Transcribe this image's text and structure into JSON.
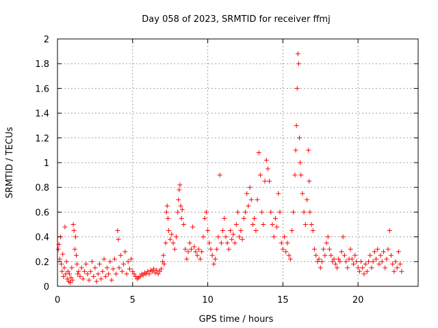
{
  "chart_data": {
    "type": "scatter",
    "title": "Day 058 of 2023, SRMTID for receiver ffmj",
    "xlabel": "GPS time / hours",
    "ylabel": "SRMTID / TECUs",
    "xlim": [
      0,
      24
    ],
    "ylim": [
      0,
      2
    ],
    "xticks": [
      0,
      5,
      10,
      15,
      20
    ],
    "yticks": [
      0,
      0.2,
      0.4,
      0.6,
      0.8,
      1,
      1.2,
      1.4,
      1.6,
      1.8,
      2
    ],
    "grid": true,
    "marker": "+",
    "marker_color": "#ff0000",
    "series": [
      {
        "name": "SRMTID",
        "points": [
          [
            0.05,
            0.3
          ],
          [
            0.1,
            0.34
          ],
          [
            0.15,
            0.22
          ],
          [
            0.2,
            0.4
          ],
          [
            0.25,
            0.18
          ],
          [
            0.3,
            0.12
          ],
          [
            0.35,
            0.26
          ],
          [
            0.4,
            0.08
          ],
          [
            0.45,
            0.15
          ],
          [
            0.5,
            0.48
          ],
          [
            0.55,
            0.1
          ],
          [
            0.6,
            0.2
          ],
          [
            0.65,
            0.06
          ],
          [
            0.7,
            0.12
          ],
          [
            0.75,
            0.04
          ],
          [
            0.8,
            0.1
          ],
          [
            0.85,
            0.03
          ],
          [
            0.9,
            0.07
          ],
          [
            0.95,
            0.15
          ],
          [
            1.0,
            0.05
          ],
          [
            1.05,
            0.5
          ],
          [
            1.1,
            0.45
          ],
          [
            1.15,
            0.3
          ],
          [
            1.2,
            0.4
          ],
          [
            1.25,
            0.25
          ],
          [
            1.3,
            0.18
          ],
          [
            1.35,
            0.1
          ],
          [
            1.4,
            0.12
          ],
          [
            1.5,
            0.08
          ],
          [
            1.6,
            0.15
          ],
          [
            1.7,
            0.06
          ],
          [
            1.8,
            0.12
          ],
          [
            1.9,
            0.18
          ],
          [
            2.0,
            0.1
          ],
          [
            2.1,
            0.05
          ],
          [
            2.2,
            0.12
          ],
          [
            2.3,
            0.2
          ],
          [
            2.4,
            0.08
          ],
          [
            2.5,
            0.15
          ],
          [
            2.6,
            0.04
          ],
          [
            2.7,
            0.1
          ],
          [
            2.8,
            0.18
          ],
          [
            2.9,
            0.06
          ],
          [
            3.0,
            0.12
          ],
          [
            3.1,
            0.22
          ],
          [
            3.2,
            0.08
          ],
          [
            3.3,
            0.15
          ],
          [
            3.4,
            0.1
          ],
          [
            3.5,
            0.2
          ],
          [
            3.6,
            0.05
          ],
          [
            3.7,
            0.14
          ],
          [
            3.8,
            0.22
          ],
          [
            3.9,
            0.1
          ],
          [
            4.0,
            0.45
          ],
          [
            4.05,
            0.38
          ],
          [
            4.1,
            0.15
          ],
          [
            4.2,
            0.25
          ],
          [
            4.3,
            0.12
          ],
          [
            4.4,
            0.18
          ],
          [
            4.5,
            0.28
          ],
          [
            4.6,
            0.1
          ],
          [
            4.7,
            0.2
          ],
          [
            4.8,
            0.14
          ],
          [
            4.9,
            0.22
          ],
          [
            5.0,
            0.12
          ],
          [
            5.1,
            0.1
          ],
          [
            5.2,
            0.08
          ],
          [
            5.3,
            0.06
          ],
          [
            5.4,
            0.07
          ],
          [
            5.5,
            0.08
          ],
          [
            5.6,
            0.1
          ],
          [
            5.7,
            0.09
          ],
          [
            5.8,
            0.11
          ],
          [
            5.9,
            0.1
          ],
          [
            6.0,
            0.12
          ],
          [
            6.1,
            0.1
          ],
          [
            6.2,
            0.13
          ],
          [
            6.3,
            0.12
          ],
          [
            6.4,
            0.14
          ],
          [
            6.5,
            0.11
          ],
          [
            6.6,
            0.13
          ],
          [
            6.7,
            0.1
          ],
          [
            6.8,
            0.12
          ],
          [
            6.9,
            0.14
          ],
          [
            7.0,
            0.2
          ],
          [
            7.05,
            0.25
          ],
          [
            7.1,
            0.18
          ],
          [
            7.2,
            0.35
          ],
          [
            7.25,
            0.6
          ],
          [
            7.3,
            0.65
          ],
          [
            7.35,
            0.55
          ],
          [
            7.4,
            0.45
          ],
          [
            7.5,
            0.38
          ],
          [
            7.6,
            0.42
          ],
          [
            7.7,
            0.35
          ],
          [
            7.8,
            0.3
          ],
          [
            7.9,
            0.4
          ],
          [
            8.0,
            0.6
          ],
          [
            8.05,
            0.7
          ],
          [
            8.1,
            0.78
          ],
          [
            8.15,
            0.82
          ],
          [
            8.2,
            0.65
          ],
          [
            8.25,
            0.55
          ],
          [
            8.3,
            0.62
          ],
          [
            8.4,
            0.5
          ],
          [
            8.5,
            0.3
          ],
          [
            8.6,
            0.22
          ],
          [
            8.7,
            0.28
          ],
          [
            8.8,
            0.35
          ],
          [
            8.9,
            0.3
          ],
          [
            9.0,
            0.48
          ],
          [
            9.1,
            0.32
          ],
          [
            9.2,
            0.28
          ],
          [
            9.3,
            0.25
          ],
          [
            9.4,
            0.3
          ],
          [
            9.5,
            0.22
          ],
          [
            9.6,
            0.28
          ],
          [
            9.7,
            0.4
          ],
          [
            9.8,
            0.55
          ],
          [
            9.9,
            0.6
          ],
          [
            10.0,
            0.45
          ],
          [
            10.1,
            0.35
          ],
          [
            10.2,
            0.3
          ],
          [
            10.3,
            0.25
          ],
          [
            10.4,
            0.18
          ],
          [
            10.5,
            0.22
          ],
          [
            10.6,
            0.3
          ],
          [
            10.7,
            0.4
          ],
          [
            10.8,
            0.9
          ],
          [
            10.9,
            0.35
          ],
          [
            11.0,
            0.45
          ],
          [
            11.1,
            0.55
          ],
          [
            11.2,
            0.4
          ],
          [
            11.3,
            0.35
          ],
          [
            11.4,
            0.3
          ],
          [
            11.5,
            0.45
          ],
          [
            11.6,
            0.38
          ],
          [
            11.7,
            0.42
          ],
          [
            11.8,
            0.35
          ],
          [
            11.9,
            0.5
          ],
          [
            12.0,
            0.6
          ],
          [
            12.1,
            0.4
          ],
          [
            12.2,
            0.45
          ],
          [
            12.3,
            0.38
          ],
          [
            12.4,
            0.55
          ],
          [
            12.5,
            0.6
          ],
          [
            12.6,
            0.75
          ],
          [
            12.7,
            0.65
          ],
          [
            12.8,
            0.8
          ],
          [
            12.9,
            0.7
          ],
          [
            13.0,
            0.5
          ],
          [
            13.1,
            0.55
          ],
          [
            13.2,
            0.45
          ],
          [
            13.3,
            0.7
          ],
          [
            13.4,
            1.08
          ],
          [
            13.5,
            0.9
          ],
          [
            13.6,
            0.6
          ],
          [
            13.7,
            0.5
          ],
          [
            13.8,
            0.85
          ],
          [
            13.9,
            1.02
          ],
          [
            14.0,
            0.95
          ],
          [
            14.1,
            0.85
          ],
          [
            14.2,
            0.6
          ],
          [
            14.3,
            0.5
          ],
          [
            14.4,
            0.4
          ],
          [
            14.5,
            0.55
          ],
          [
            14.6,
            0.48
          ],
          [
            14.7,
            0.75
          ],
          [
            14.8,
            0.6
          ],
          [
            14.9,
            0.35
          ],
          [
            15.0,
            0.3
          ],
          [
            15.1,
            0.4
          ],
          [
            15.2,
            0.28
          ],
          [
            15.3,
            0.35
          ],
          [
            15.4,
            0.25
          ],
          [
            15.5,
            0.22
          ],
          [
            15.6,
            0.45
          ],
          [
            15.7,
            0.6
          ],
          [
            15.8,
            0.9
          ],
          [
            15.85,
            1.1
          ],
          [
            15.9,
            1.3
          ],
          [
            15.95,
            1.6
          ],
          [
            16.0,
            1.88
          ],
          [
            16.05,
            1.8
          ],
          [
            16.1,
            1.2
          ],
          [
            16.15,
            1.0
          ],
          [
            16.2,
            0.9
          ],
          [
            16.3,
            0.75
          ],
          [
            16.4,
            0.6
          ],
          [
            16.5,
            0.5
          ],
          [
            16.6,
            0.7
          ],
          [
            16.7,
            1.1
          ],
          [
            16.75,
            0.85
          ],
          [
            16.8,
            0.6
          ],
          [
            16.9,
            0.5
          ],
          [
            17.0,
            0.45
          ],
          [
            17.1,
            0.3
          ],
          [
            17.2,
            0.25
          ],
          [
            17.3,
            0.2
          ],
          [
            17.4,
            0.22
          ],
          [
            17.5,
            0.15
          ],
          [
            17.6,
            0.2
          ],
          [
            17.7,
            0.3
          ],
          [
            17.8,
            0.25
          ],
          [
            17.9,
            0.35
          ],
          [
            18.0,
            0.4
          ],
          [
            18.1,
            0.3
          ],
          [
            18.2,
            0.25
          ],
          [
            18.3,
            0.2
          ],
          [
            18.4,
            0.22
          ],
          [
            18.5,
            0.18
          ],
          [
            18.6,
            0.15
          ],
          [
            18.7,
            0.22
          ],
          [
            18.8,
            0.2
          ],
          [
            18.9,
            0.28
          ],
          [
            19.0,
            0.4
          ],
          [
            19.1,
            0.25
          ],
          [
            19.2,
            0.2
          ],
          [
            19.3,
            0.15
          ],
          [
            19.4,
            0.22
          ],
          [
            19.5,
            0.3
          ],
          [
            19.6,
            0.22
          ],
          [
            19.7,
            0.18
          ],
          [
            19.8,
            0.25
          ],
          [
            19.9,
            0.2
          ],
          [
            20.0,
            0.15
          ],
          [
            20.1,
            0.12
          ],
          [
            20.2,
            0.2
          ],
          [
            20.3,
            0.15
          ],
          [
            20.4,
            0.1
          ],
          [
            20.5,
            0.18
          ],
          [
            20.6,
            0.12
          ],
          [
            20.7,
            0.2
          ],
          [
            20.8,
            0.25
          ],
          [
            20.9,
            0.15
          ],
          [
            21.0,
            0.2
          ],
          [
            21.1,
            0.28
          ],
          [
            21.2,
            0.22
          ],
          [
            21.3,
            0.3
          ],
          [
            21.4,
            0.18
          ],
          [
            21.5,
            0.25
          ],
          [
            21.6,
            0.2
          ],
          [
            21.7,
            0.28
          ],
          [
            21.8,
            0.15
          ],
          [
            21.9,
            0.22
          ],
          [
            22.0,
            0.3
          ],
          [
            22.1,
            0.45
          ],
          [
            22.2,
            0.25
          ],
          [
            22.3,
            0.18
          ],
          [
            22.4,
            0.12
          ],
          [
            22.5,
            0.2
          ],
          [
            22.6,
            0.15
          ],
          [
            22.7,
            0.28
          ],
          [
            22.8,
            0.18
          ],
          [
            22.9,
            0.12
          ]
        ]
      }
    ]
  }
}
